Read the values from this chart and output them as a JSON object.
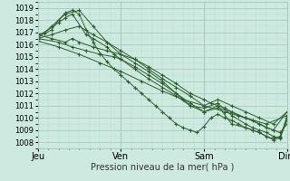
{
  "xlabel": "Pression niveau de la mer( hPa )",
  "xlim": [
    0,
    72
  ],
  "ylim": [
    1007.5,
    1019.5
  ],
  "yticks": [
    1008,
    1009,
    1010,
    1011,
    1012,
    1013,
    1014,
    1015,
    1016,
    1017,
    1018,
    1019
  ],
  "xtick_positions": [
    0,
    24,
    48,
    72
  ],
  "xtick_labels": [
    "Jeu",
    "Ven",
    "Sam",
    "Dim"
  ],
  "bg_color": "#ceeae0",
  "grid_major_color": "#a8ccbf",
  "grid_minor_color": "#b8d8cc",
  "line_color": "#2d5e2d",
  "series": [
    [
      0,
      1016.8,
      2,
      1016.9,
      4,
      1017.2,
      6,
      1018.0,
      8,
      1018.6,
      10,
      1018.8,
      12,
      1018.5,
      14,
      1017.2,
      16,
      1016.2,
      18,
      1015.3,
      20,
      1014.6,
      22,
      1014.0,
      24,
      1013.5,
      26,
      1013.0,
      28,
      1012.5,
      30,
      1012.0,
      32,
      1011.5,
      34,
      1011.0,
      36,
      1010.5,
      38,
      1010.0,
      40,
      1009.5,
      42,
      1009.2,
      44,
      1009.0,
      46,
      1008.8,
      48,
      1009.3,
      50,
      1010.0,
      52,
      1010.3,
      54,
      1010.0,
      56,
      1009.8,
      58,
      1009.5,
      60,
      1009.2,
      62,
      1009.0,
      64,
      1008.8,
      66,
      1008.5,
      68,
      1008.3,
      70,
      1008.5,
      72,
      1010.0
    ],
    [
      0,
      1016.5,
      4,
      1017.5,
      8,
      1018.5,
      12,
      1018.8,
      16,
      1017.5,
      20,
      1016.2,
      24,
      1015.2,
      28,
      1014.5,
      32,
      1013.8,
      36,
      1013.0,
      40,
      1012.0,
      44,
      1011.0,
      48,
      1010.5,
      52,
      1010.8,
      56,
      1010.5,
      60,
      1010.0,
      64,
      1009.5,
      68,
      1009.0,
      72,
      1010.5
    ],
    [
      0,
      1016.3,
      6,
      1015.8,
      12,
      1015.2,
      18,
      1014.5,
      24,
      1013.8,
      30,
      1013.0,
      36,
      1012.2,
      42,
      1011.5,
      48,
      1011.0,
      54,
      1010.5,
      60,
      1010.0,
      66,
      1009.5,
      72,
      1010.2
    ],
    [
      0,
      1016.5,
      6,
      1016.2,
      10,
      1015.8,
      14,
      1015.5,
      18,
      1015.2,
      22,
      1015.0,
      24,
      1014.8,
      28,
      1014.2,
      32,
      1013.5,
      36,
      1012.8,
      40,
      1012.0,
      44,
      1011.2,
      48,
      1010.5,
      52,
      1011.0,
      56,
      1009.5,
      60,
      1009.2,
      62,
      1009.0,
      64,
      1008.8,
      66,
      1008.5,
      68,
      1008.2,
      70,
      1008.4,
      72,
      1009.8
    ],
    [
      0,
      1016.8,
      4,
      1016.5,
      8,
      1016.2,
      10,
      1016.5,
      12,
      1016.2,
      16,
      1015.8,
      20,
      1015.5,
      24,
      1015.2,
      28,
      1014.8,
      32,
      1014.2,
      36,
      1013.5,
      40,
      1012.8,
      44,
      1012.0,
      48,
      1011.5,
      50,
      1011.2,
      52,
      1011.0,
      54,
      1010.8,
      56,
      1010.5,
      58,
      1010.2,
      60,
      1010.0,
      62,
      1009.8,
      64,
      1009.5,
      66,
      1009.2,
      68,
      1009.0,
      70,
      1008.8,
      72,
      1009.5
    ],
    [
      0,
      1016.8,
      2,
      1017.0,
      6,
      1017.8,
      8,
      1018.2,
      10,
      1018.5,
      14,
      1016.8,
      16,
      1016.5,
      20,
      1015.8,
      22,
      1015.2,
      24,
      1014.8,
      28,
      1014.0,
      32,
      1013.2,
      36,
      1012.5,
      40,
      1011.8,
      44,
      1011.0,
      48,
      1010.8,
      52,
      1011.2,
      56,
      1010.2,
      60,
      1009.5,
      62,
      1009.2,
      64,
      1009.0,
      66,
      1008.8,
      68,
      1008.5,
      70,
      1008.3,
      72,
      1010.2
    ],
    [
      0,
      1016.5,
      4,
      1016.8,
      8,
      1017.2,
      12,
      1017.5,
      16,
      1016.8,
      20,
      1016.2,
      24,
      1015.5,
      28,
      1014.8,
      32,
      1014.0,
      36,
      1013.2,
      40,
      1012.5,
      44,
      1011.8,
      48,
      1011.0,
      52,
      1011.5,
      56,
      1011.0,
      60,
      1010.5,
      64,
      1010.0,
      68,
      1009.5,
      72,
      1010.5
    ]
  ]
}
